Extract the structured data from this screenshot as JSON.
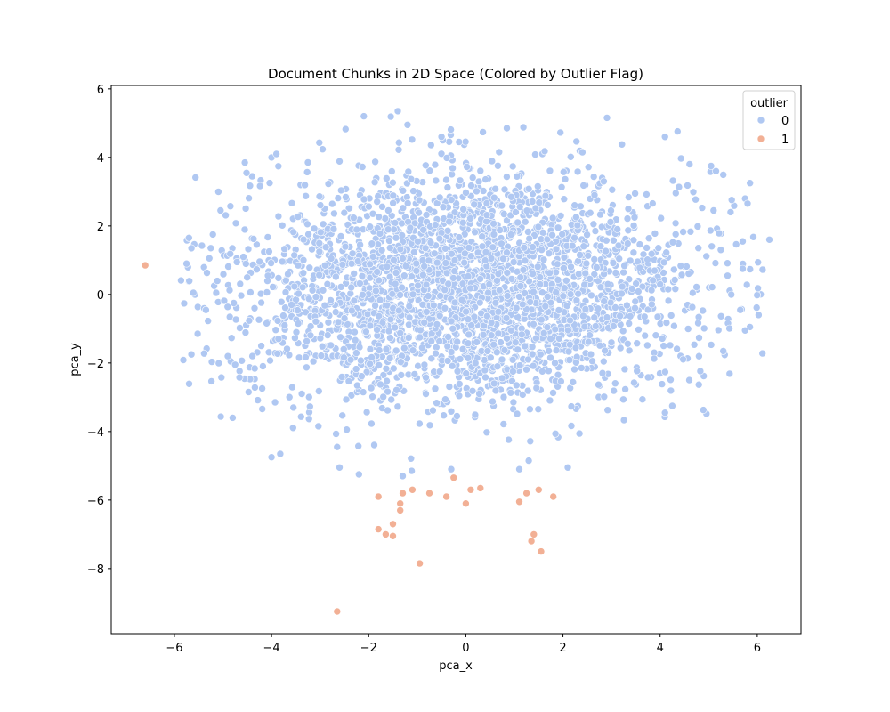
{
  "chart_data": {
    "type": "scatter",
    "title": "Document Chunks in 2D Space (Colored by Outlier Flag)",
    "xlabel": "pca_x",
    "ylabel": "pca_y",
    "xlim": [
      -7.3,
      6.9
    ],
    "ylim": [
      -9.9,
      6.1
    ],
    "xticks": [
      -6,
      -4,
      -2,
      0,
      2,
      4,
      6
    ],
    "yticks": [
      -8,
      -6,
      -4,
      -2,
      0,
      2,
      4,
      6
    ],
    "grid": false,
    "legend": {
      "title": "outlier",
      "placement": "top-right"
    },
    "series": [
      {
        "name": "0",
        "color": "#b0c8f2",
        "cluster": {
          "count": 3200,
          "center": [
            0.0,
            0.2
          ],
          "spread": [
            2.3,
            1.65
          ],
          "bounds_x": [
            -5.9,
            6.2
          ],
          "bounds_y": [
            -5.2,
            5.3
          ]
        },
        "points": [
          [
            -5.65,
            -1.75
          ],
          [
            -5.75,
            0.9
          ],
          [
            -5.7,
            1.65
          ],
          [
            -5.65,
            1.35
          ],
          [
            -5.35,
            -0.45
          ],
          [
            -5.05,
            2.45
          ],
          [
            -4.9,
            -1.8
          ],
          [
            -4.75,
            -2.05
          ],
          [
            -4.8,
            -3.6
          ],
          [
            -4.55,
            3.85
          ],
          [
            -4.0,
            -4.75
          ],
          [
            -4.0,
            4.0
          ],
          [
            -3.9,
            4.1
          ],
          [
            -3.55,
            -3.3
          ],
          [
            -2.65,
            -4.45
          ],
          [
            -2.6,
            -5.05
          ],
          [
            -2.1,
            5.2
          ],
          [
            -2.2,
            -5.25
          ],
          [
            -1.4,
            5.35
          ],
          [
            -1.2,
            4.95
          ],
          [
            -1.3,
            -5.3
          ],
          [
            -0.5,
            4.6
          ],
          [
            -0.3,
            -5.1
          ],
          [
            1.1,
            -5.1
          ],
          [
            2.1,
            -5.05
          ],
          [
            2.4,
            4.15
          ],
          [
            4.1,
            4.6
          ],
          [
            4.1,
            -3.45
          ],
          [
            4.25,
            -3.25
          ],
          [
            4.6,
            -2.5
          ],
          [
            4.8,
            -1.8
          ],
          [
            5.3,
            -1.65
          ],
          [
            5.05,
            3.75
          ],
          [
            5.15,
            3.6
          ],
          [
            5.85,
            3.25
          ],
          [
            5.75,
            2.8
          ],
          [
            5.8,
            2.65
          ],
          [
            5.7,
            0.75
          ],
          [
            5.75,
            -1.05
          ],
          [
            5.65,
            -0.45
          ],
          [
            6.25,
            1.6
          ],
          [
            5.7,
            1.55
          ],
          [
            5.45,
            2.4
          ],
          [
            5.1,
            2.45
          ],
          [
            5.25,
            1.3
          ]
        ]
      },
      {
        "name": "1",
        "color": "#f2b095",
        "points": [
          [
            -6.6,
            0.85
          ],
          [
            -2.65,
            -9.25
          ],
          [
            -1.8,
            -5.9
          ],
          [
            -1.8,
            -6.85
          ],
          [
            -1.65,
            -7.0
          ],
          [
            -1.5,
            -6.7
          ],
          [
            -1.5,
            -7.05
          ],
          [
            -1.35,
            -6.3
          ],
          [
            -1.35,
            -6.1
          ],
          [
            -1.3,
            -5.8
          ],
          [
            -1.1,
            -5.7
          ],
          [
            -0.95,
            -7.85
          ],
          [
            -0.75,
            -5.8
          ],
          [
            -0.4,
            -5.9
          ],
          [
            -0.25,
            -5.35
          ],
          [
            0.0,
            -6.1
          ],
          [
            0.1,
            -5.7
          ],
          [
            0.3,
            -5.65
          ],
          [
            1.1,
            -6.05
          ],
          [
            1.25,
            -5.8
          ],
          [
            1.35,
            -7.2
          ],
          [
            1.4,
            -7.0
          ],
          [
            1.5,
            -5.7
          ],
          [
            1.55,
            -7.5
          ],
          [
            1.8,
            -5.9
          ]
        ]
      }
    ]
  }
}
